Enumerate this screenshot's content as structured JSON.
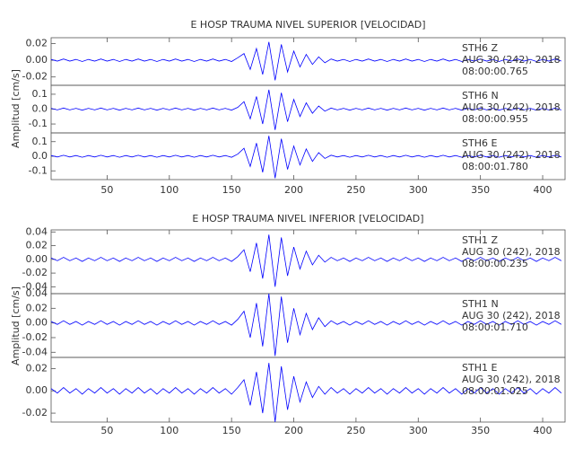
{
  "chart_data": [
    {
      "type": "line",
      "title": "E HOSP TRAUMA NIVEL SUPERIOR [VELOCIDAD]",
      "y_label": "Amplitud [cm/s]",
      "xlim": [
        5,
        418
      ],
      "xticks": [
        50,
        100,
        150,
        200,
        250,
        300,
        350,
        400
      ],
      "x": [
        5,
        10,
        15,
        20,
        25,
        30,
        35,
        40,
        45,
        50,
        55,
        60,
        65,
        70,
        75,
        80,
        85,
        90,
        95,
        100,
        105,
        110,
        115,
        120,
        125,
        130,
        135,
        140,
        145,
        150,
        155,
        160,
        165,
        170,
        175,
        180,
        185,
        190,
        195,
        200,
        205,
        210,
        215,
        220,
        225,
        230,
        235,
        240,
        245,
        250,
        255,
        260,
        265,
        270,
        275,
        280,
        285,
        290,
        295,
        300,
        305,
        310,
        315,
        320,
        325,
        330,
        335,
        340,
        345,
        350,
        355,
        360,
        365,
        370,
        375,
        380,
        385,
        390,
        395,
        400,
        405,
        410,
        415
      ],
      "panels": [
        {
          "station": "STH6  Z",
          "date": "AUG 30 (242), 2018",
          "time": "08:00:00.765",
          "color": "#0000ff",
          "ylim": [
            -0.03,
            0.027
          ],
          "yticks": [
            0.02,
            {
              "value": 0,
              "label": "0.00"
            },
            -0.02
          ],
          "values": [
            0.001,
            -0.001,
            0.0015,
            -0.001,
            0.001,
            -0.0015,
            0.001,
            -0.001,
            0.0015,
            -0.001,
            0.001,
            -0.0015,
            0.001,
            -0.001,
            0.0015,
            -0.001,
            0.001,
            -0.0015,
            0.001,
            -0.001,
            0.0015,
            -0.001,
            0.001,
            -0.0015,
            0.001,
            -0.001,
            0.0015,
            -0.001,
            0.001,
            -0.0015,
            0.003,
            0.008,
            -0.011,
            0.014,
            -0.017,
            0.022,
            -0.024,
            0.019,
            -0.014,
            0.011,
            -0.008,
            0.007,
            -0.005,
            0.004,
            -0.003,
            0.0015,
            -0.001,
            0.001,
            -0.0015,
            0.001,
            -0.001,
            0.0015,
            -0.001,
            0.001,
            -0.0015,
            0.001,
            -0.001,
            0.0015,
            -0.001,
            0.001,
            -0.0015,
            0.001,
            -0.001,
            0.0015,
            -0.001,
            0.001,
            -0.0015,
            0.001,
            -0.001,
            0.0015,
            -0.001,
            0.001,
            -0.0015,
            0.001,
            -0.001,
            0.0015,
            -0.001,
            0.001,
            -0.0015,
            0.001,
            -0.001,
            0.0015,
            -0.001
          ]
        },
        {
          "station": "STH6  N",
          "date": "AUG 30 (242), 2018",
          "time": "08:00:00.955",
          "color": "#0000ff",
          "ylim": [
            -0.16,
            0.16
          ],
          "yticks": [
            0.1,
            {
              "value": 0,
              "label": "0.0"
            },
            -0.1
          ],
          "values": [
            0.005,
            -0.005,
            0.007,
            -0.005,
            0.005,
            -0.007,
            0.005,
            -0.005,
            0.007,
            -0.005,
            0.005,
            -0.007,
            0.005,
            -0.005,
            0.007,
            -0.005,
            0.005,
            -0.007,
            0.005,
            -0.005,
            0.007,
            -0.005,
            0.005,
            -0.007,
            0.005,
            -0.005,
            0.007,
            -0.005,
            0.005,
            -0.007,
            0.012,
            0.05,
            -0.065,
            0.085,
            -0.1,
            0.13,
            -0.14,
            0.11,
            -0.085,
            0.065,
            -0.05,
            0.042,
            -0.028,
            0.021,
            -0.014,
            0.007,
            -0.005,
            0.005,
            -0.007,
            0.005,
            -0.005,
            0.007,
            -0.005,
            0.005,
            -0.007,
            0.005,
            -0.005,
            0.007,
            -0.005,
            0.005,
            -0.007,
            0.005,
            -0.005,
            0.007,
            -0.005,
            0.005,
            -0.007,
            0.005,
            -0.005,
            0.007,
            -0.005,
            0.005,
            -0.007,
            0.005,
            -0.005,
            0.007,
            -0.005,
            0.005,
            -0.007,
            0.005,
            -0.005,
            0.007,
            -0.005
          ]
        },
        {
          "station": "STH6  E",
          "date": "AUG 30 (242), 2018",
          "time": "08:00:01.780",
          "color": "#0000ff",
          "ylim": [
            -0.16,
            0.16
          ],
          "yticks": [
            0.1,
            {
              "value": 0,
              "label": "0.0"
            },
            -0.1
          ],
          "values": [
            0.005,
            -0.005,
            0.007,
            -0.005,
            0.005,
            -0.007,
            0.005,
            -0.005,
            0.007,
            -0.005,
            0.005,
            -0.007,
            0.005,
            -0.005,
            0.007,
            -0.005,
            0.005,
            -0.007,
            0.005,
            -0.005,
            0.007,
            -0.005,
            0.005,
            -0.007,
            0.005,
            -0.005,
            0.007,
            -0.005,
            0.005,
            -0.007,
            0.015,
            0.055,
            -0.07,
            0.09,
            -0.11,
            0.14,
            -0.15,
            0.12,
            -0.09,
            0.07,
            -0.06,
            0.05,
            -0.035,
            0.025,
            -0.015,
            0.007,
            -0.005,
            0.005,
            -0.007,
            0.005,
            -0.005,
            0.007,
            -0.005,
            0.005,
            -0.007,
            0.005,
            -0.005,
            0.007,
            -0.005,
            0.005,
            -0.007,
            0.005,
            -0.005,
            0.007,
            -0.005,
            0.005,
            -0.007,
            0.005,
            -0.005,
            0.007,
            -0.005,
            0.005,
            -0.007,
            0.005,
            -0.005,
            0.007,
            -0.005,
            0.005,
            -0.007,
            0.005,
            -0.005,
            0.007,
            -0.005
          ]
        }
      ]
    },
    {
      "type": "line",
      "title": "E HOSP TRAUMA NIVEL INFERIOR [VELOCIDAD]",
      "y_label": "Amplitud [cm/s]",
      "xlim": [
        5,
        418
      ],
      "xticks": [
        50,
        100,
        150,
        200,
        250,
        300,
        350,
        400
      ],
      "x": [
        5,
        10,
        15,
        20,
        25,
        30,
        35,
        40,
        45,
        50,
        55,
        60,
        65,
        70,
        75,
        80,
        85,
        90,
        95,
        100,
        105,
        110,
        115,
        120,
        125,
        130,
        135,
        140,
        145,
        150,
        155,
        160,
        165,
        170,
        175,
        180,
        185,
        190,
        195,
        200,
        205,
        210,
        215,
        220,
        225,
        230,
        235,
        240,
        245,
        250,
        255,
        260,
        265,
        270,
        275,
        280,
        285,
        290,
        295,
        300,
        305,
        310,
        315,
        320,
        325,
        330,
        335,
        340,
        345,
        350,
        355,
        360,
        365,
        370,
        375,
        380,
        385,
        390,
        395,
        400,
        405,
        410,
        415
      ],
      "panels": [
        {
          "station": "STH1  Z",
          "date": "AUG 30 (242), 2018",
          "time": "08:00:00.235",
          "color": "#0000ff",
          "ylim": [
            -0.05,
            0.043
          ],
          "yticks": [
            0.04,
            0.02,
            {
              "value": 0,
              "label": "0.00"
            },
            -0.02,
            -0.04
          ],
          "values": [
            0.002,
            -0.002,
            0.003,
            -0.002,
            0.002,
            -0.003,
            0.002,
            -0.002,
            0.003,
            -0.002,
            0.002,
            -0.003,
            0.002,
            -0.002,
            0.003,
            -0.002,
            0.002,
            -0.003,
            0.002,
            -0.002,
            0.003,
            -0.002,
            0.002,
            -0.003,
            0.002,
            -0.002,
            0.003,
            -0.002,
            0.002,
            -0.003,
            0.004,
            0.014,
            -0.018,
            0.024,
            -0.028,
            0.036,
            -0.04,
            0.032,
            -0.024,
            0.018,
            -0.014,
            0.012,
            -0.008,
            0.006,
            -0.004,
            0.003,
            -0.002,
            0.002,
            -0.003,
            0.002,
            -0.002,
            0.003,
            -0.002,
            0.002,
            -0.003,
            0.002,
            -0.002,
            0.003,
            -0.002,
            0.002,
            -0.003,
            0.002,
            -0.002,
            0.003,
            -0.002,
            0.002,
            -0.003,
            0.002,
            -0.002,
            0.003,
            -0.002,
            0.002,
            -0.003,
            0.002,
            -0.002,
            0.003,
            -0.002,
            0.002,
            -0.003,
            0.002,
            -0.002,
            0.003,
            -0.002
          ]
        },
        {
          "station": "STH1  N",
          "date": "AUG 30 (242), 2018",
          "time": "08:00:01.710",
          "color": "#0000ff",
          "ylim": [
            -0.047,
            0.04
          ],
          "yticks": [
            0.04,
            0.02,
            {
              "value": 0,
              "label": "0.00"
            },
            -0.02,
            -0.04
          ],
          "values": [
            0.002,
            -0.002,
            0.003,
            -0.002,
            0.002,
            -0.003,
            0.002,
            -0.002,
            0.003,
            -0.002,
            0.002,
            -0.003,
            0.002,
            -0.002,
            0.003,
            -0.002,
            0.002,
            -0.003,
            0.002,
            -0.002,
            0.003,
            -0.002,
            0.002,
            -0.003,
            0.002,
            -0.002,
            0.003,
            -0.002,
            0.002,
            -0.003,
            0.005,
            0.016,
            -0.02,
            0.027,
            -0.032,
            0.04,
            -0.045,
            0.036,
            -0.027,
            0.02,
            -0.016,
            0.013,
            -0.009,
            0.007,
            -0.005,
            0.003,
            -0.002,
            0.002,
            -0.003,
            0.002,
            -0.002,
            0.003,
            -0.002,
            0.002,
            -0.003,
            0.002,
            -0.002,
            0.003,
            -0.002,
            0.002,
            -0.003,
            0.002,
            -0.002,
            0.003,
            -0.002,
            0.002,
            -0.003,
            0.002,
            -0.002,
            0.003,
            -0.002,
            0.002,
            -0.003,
            0.002,
            -0.002,
            0.003,
            -0.002,
            0.002,
            -0.003,
            0.002,
            -0.002,
            0.003,
            -0.002
          ]
        },
        {
          "station": "STH1  E",
          "date": "AUG 30 (242), 2018",
          "time": "08:00:01.025",
          "color": "#0000ff",
          "ylim": [
            -0.028,
            0.03
          ],
          "yticks": [
            0.02,
            {
              "value": 0,
              "label": "0.00"
            },
            -0.02
          ],
          "values": [
            0.002,
            -0.002,
            0.003,
            -0.002,
            0.002,
            -0.003,
            0.002,
            -0.002,
            0.003,
            -0.002,
            0.002,
            -0.003,
            0.002,
            -0.002,
            0.003,
            -0.002,
            0.002,
            -0.003,
            0.002,
            -0.002,
            0.003,
            -0.002,
            0.002,
            -0.003,
            0.002,
            -0.002,
            0.003,
            -0.002,
            0.002,
            -0.003,
            0.003,
            0.01,
            -0.013,
            0.017,
            -0.02,
            0.025,
            -0.028,
            0.022,
            -0.017,
            0.013,
            -0.01,
            0.008,
            -0.006,
            0.004,
            -0.003,
            0.003,
            -0.002,
            0.002,
            -0.003,
            0.002,
            -0.002,
            0.003,
            -0.002,
            0.002,
            -0.003,
            0.002,
            -0.002,
            0.003,
            -0.002,
            0.002,
            -0.003,
            0.002,
            -0.002,
            0.003,
            -0.002,
            0.002,
            -0.003,
            0.002,
            -0.002,
            0.003,
            -0.002,
            0.002,
            -0.003,
            0.002,
            -0.002,
            0.003,
            -0.002,
            0.002,
            -0.003,
            0.002,
            -0.002,
            0.003,
            -0.002
          ]
        }
      ]
    }
  ]
}
